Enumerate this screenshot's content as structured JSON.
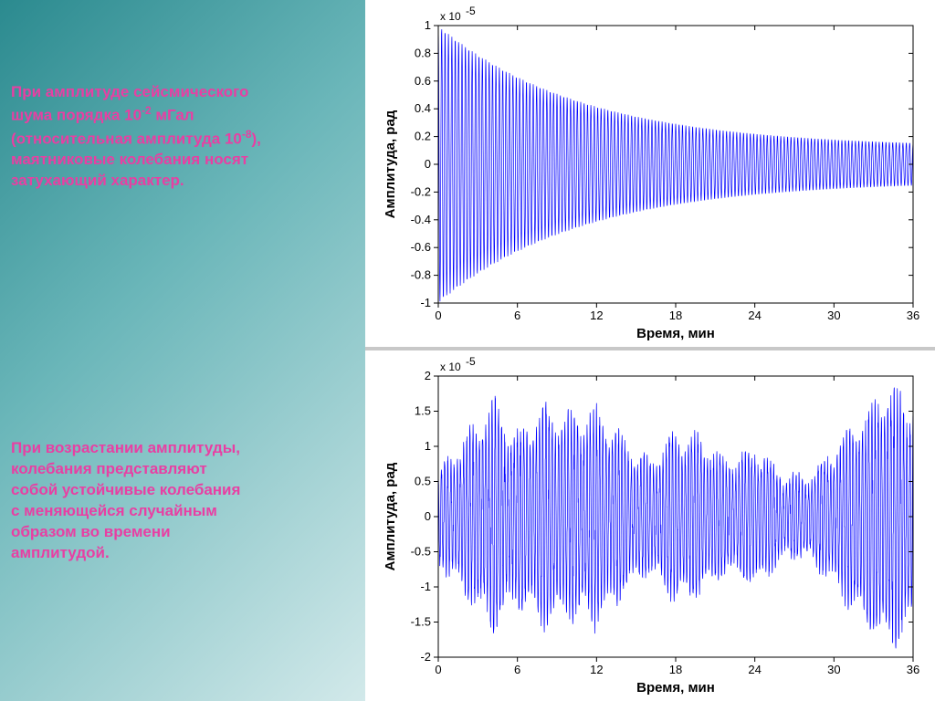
{
  "text": {
    "block1_l1": "При амплитуде сейсмического",
    "block1_l2": "шума порядка 10",
    "block1_l2_sup": "-2",
    "block1_l2_tail": " мГал",
    "block1_l3a": "(относительная амплитуда 10",
    "block1_l3_sup": "-8",
    "block1_l3b": "),",
    "block1_l4": "маятниковые колебания носят",
    "block1_l5": "затухающий характер.",
    "block2_l1": "При возрастании амплитуды,",
    "block2_l2": "колебания представляют",
    "block2_l3": "собой устойчивые колебания",
    "block2_l4": "с меняющейся случайным",
    "block2_l5": "образом во времени",
    "block2_l6": "амплитудой."
  },
  "style": {
    "text_color": "#e83fa3",
    "left_bg_start": "#2b8a8f",
    "left_bg_end": "#d2e9ea",
    "right_bg": "#ffffff",
    "signal_color": "#0000ff",
    "axis_color": "#000000",
    "tick_fontsize": 13,
    "label_fontsize": 15,
    "font_family": "Arial",
    "line_width": 0.7
  },
  "chart_top": {
    "type": "line",
    "signal_color": "#0000ff",
    "xlabel": "Время, мин",
    "ylabel": "Амплитуда, рад",
    "exponent_label": "x 10",
    "exponent_sup": "-5",
    "xlim": [
      0,
      36
    ],
    "ylim": [
      -1,
      1
    ],
    "xticks": [
      0,
      6,
      12,
      18,
      24,
      30,
      36
    ],
    "yticks": [
      -1,
      -0.8,
      -0.6,
      -0.4,
      -0.2,
      0,
      0.2,
      0.4,
      0.6,
      0.8,
      1
    ],
    "decay": {
      "initial_amplitude": 1.0,
      "tau_min": 11,
      "periods": 140,
      "floor_amplitude": 0.12
    }
  },
  "chart_bottom": {
    "type": "line",
    "signal_color": "#0000ff",
    "xlabel": "Время, мин",
    "ylabel": "Амплитуда, рад",
    "exponent_label": "x 10",
    "exponent_sup": "-5",
    "xlim": [
      0,
      36
    ],
    "ylim": [
      -2,
      2
    ],
    "xticks": [
      0,
      6,
      12,
      18,
      24,
      30,
      36
    ],
    "yticks": [
      -2,
      -1.5,
      -1,
      -0.5,
      0,
      0.5,
      1,
      1.5,
      2
    ],
    "envelope_points": [
      [
        0,
        0.6
      ],
      [
        2,
        1.0
      ],
      [
        4,
        1.5
      ],
      [
        6,
        1.1
      ],
      [
        8,
        1.4
      ],
      [
        10,
        1.3
      ],
      [
        12,
        1.4
      ],
      [
        14,
        1.0
      ],
      [
        16,
        0.7
      ],
      [
        18,
        1.1
      ],
      [
        20,
        1.0
      ],
      [
        22,
        0.7
      ],
      [
        24,
        0.9
      ],
      [
        26,
        0.55
      ],
      [
        28,
        0.5
      ],
      [
        30,
        0.9
      ],
      [
        32,
        1.3
      ],
      [
        34,
        1.7
      ],
      [
        36,
        1.5
      ]
    ],
    "carrier_periods": 150,
    "envelope_jitter": 0.25
  }
}
